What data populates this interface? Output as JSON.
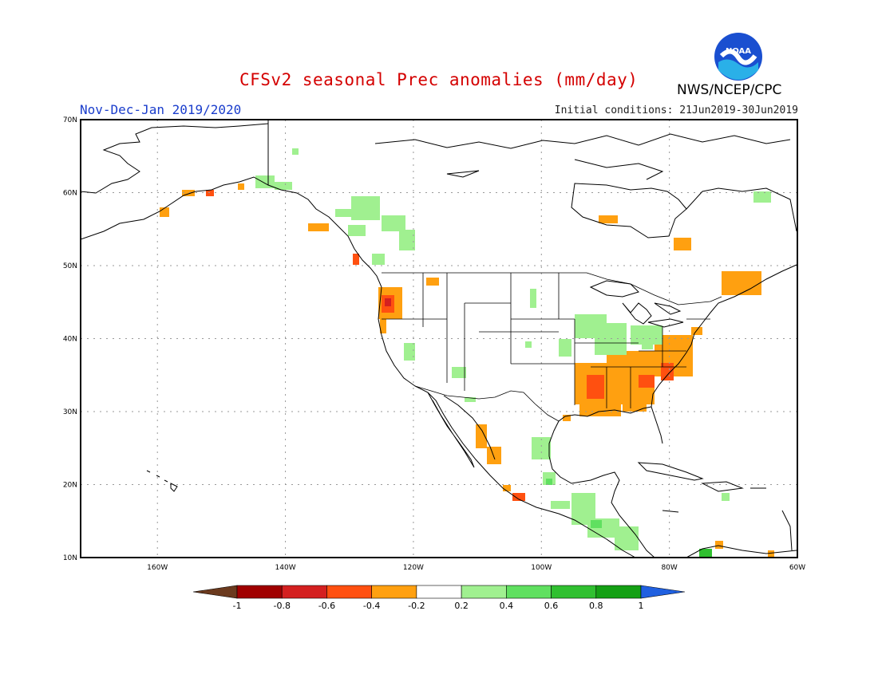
{
  "title": "CFSv2 seasonal Prec anomalies (mm/day)",
  "agency": "NWS/NCEP/CPC",
  "logo_text": "NOAA",
  "period": "Nov-Dec-Jan 2019/2020",
  "initial_conditions": "Initial conditions: 21Jun2019-30Jun2019",
  "map": {
    "lon_range": [
      -172,
      -60
    ],
    "lat_range": [
      10,
      70
    ],
    "lat_ticks": [
      {
        "value": 70,
        "label": "70N"
      },
      {
        "value": 60,
        "label": "60N"
      },
      {
        "value": 50,
        "label": "50N"
      },
      {
        "value": 40,
        "label": "40N"
      },
      {
        "value": 30,
        "label": "30N"
      },
      {
        "value": 20,
        "label": "20N"
      },
      {
        "value": 10,
        "label": "10N"
      }
    ],
    "lon_ticks": [
      {
        "value": -160,
        "label": "160W"
      },
      {
        "value": -140,
        "label": "140W"
      },
      {
        "value": -120,
        "label": "120W"
      },
      {
        "value": -100,
        "label": "100W"
      },
      {
        "value": -80,
        "label": "80W"
      },
      {
        "value": -60,
        "label": "60W"
      }
    ]
  },
  "colorbar": {
    "levels": [
      "-1",
      "-0.8",
      "-0.6",
      "-0.4",
      "-0.2",
      "0.2",
      "0.4",
      "0.6",
      "0.8",
      "1"
    ],
    "colors": [
      "#6b3a1e",
      "#a00000",
      "#d42020",
      "#ff5010",
      "#ffa010",
      "#ffffff",
      "#a0f090",
      "#60e060",
      "#30c030",
      "#14a014",
      "#2060e0"
    ]
  },
  "anomaly_regions": [
    {
      "region": "Southeast US",
      "category": "-0.4 to -0.2",
      "lon": [
        -92,
        -76
      ],
      "lat": [
        30,
        38
      ]
    },
    {
      "region": "Southeast US core",
      "category": "-0.6 to -0.4",
      "lon": [
        -90,
        -80
      ],
      "lat": [
        32,
        36
      ]
    },
    {
      "region": "Oregon coast",
      "category": "-0.8 to -0.6",
      "lon": [
        -124.5,
        -122.5
      ],
      "lat": [
        42,
        45
      ]
    },
    {
      "region": "Pacific Northwest",
      "category": "-0.4 to -0.2",
      "lon": [
        -125,
        -122
      ],
      "lat": [
        41,
        46
      ]
    },
    {
      "region": "Southern Alaska",
      "category": "-0.4 to -0.2",
      "lon": [
        -157,
        -147
      ],
      "lat": [
        57,
        61
      ]
    },
    {
      "region": "Northeast US / Maine",
      "category": "-0.4 to -0.2",
      "lon": [
        -72,
        -66
      ],
      "lat": [
        43,
        48
      ]
    },
    {
      "region": "Western Mexico",
      "category": "-0.4 to -0.2",
      "lon": [
        -110,
        -106
      ],
      "lat": [
        23,
        28
      ]
    },
    {
      "region": "Ohio Valley",
      "category": "0.2 to 0.4",
      "lon": [
        -93,
        -82
      ],
      "lat": [
        38,
        42
      ]
    },
    {
      "region": "Western Canada",
      "category": "0.2 to 0.4",
      "lon": [
        -130,
        -118
      ],
      "lat": [
        52,
        59
      ]
    },
    {
      "region": "Central America",
      "category": "0.2 to 0.4",
      "lon": [
        -94,
        -84
      ],
      "lat": [
        12,
        18
      ]
    }
  ]
}
